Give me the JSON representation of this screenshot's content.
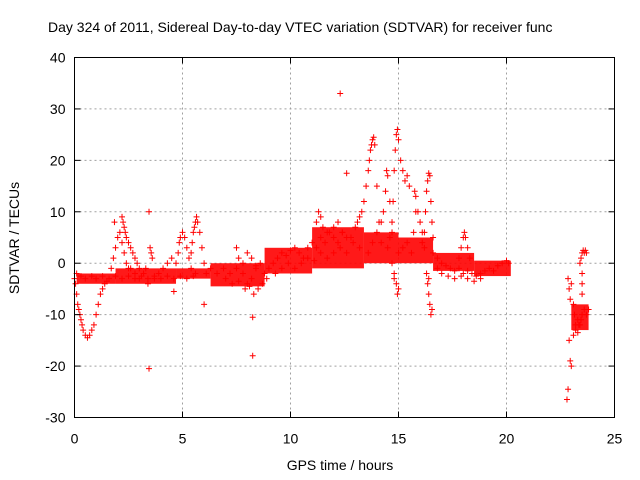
{
  "chart_data": {
    "type": "scatter",
    "title": "Day 324 of 2011, Sidereal Day-to-day VTEC variation (SDTVAR) for receiver func",
    "xlabel": "GPS time / hours",
    "ylabel": "SDTVAR / TECUs",
    "xlim": [
      0,
      25
    ],
    "ylim": [
      -30,
      40
    ],
    "xticks": [
      0,
      5,
      10,
      15,
      20,
      25
    ],
    "xtick_labels": [
      "0",
      "5",
      "10",
      "15",
      "20",
      "25"
    ],
    "yticks": [
      -30,
      -20,
      -10,
      0,
      10,
      20,
      30,
      40
    ],
    "ytick_labels": [
      "-30",
      "-20",
      "-10",
      "0",
      "10",
      "20",
      "30",
      "40"
    ],
    "grid": true,
    "marker": "+",
    "series": [
      {
        "name": "SDTVAR",
        "color": "#ff0000",
        "points": [
          [
            0.0,
            -3
          ],
          [
            0.05,
            -4
          ],
          [
            0.1,
            -6
          ],
          [
            0.15,
            -8
          ],
          [
            0.2,
            -9
          ],
          [
            0.25,
            -10
          ],
          [
            0.3,
            -11
          ],
          [
            0.35,
            -12
          ],
          [
            0.4,
            -13
          ],
          [
            0.5,
            -14
          ],
          [
            0.6,
            -14.5
          ],
          [
            0.7,
            -14
          ],
          [
            0.8,
            -13
          ],
          [
            0.9,
            -12
          ],
          [
            1.0,
            -10
          ],
          [
            1.1,
            -8
          ],
          [
            1.2,
            -6
          ],
          [
            1.3,
            -5
          ],
          [
            1.4,
            -4
          ],
          [
            1.5,
            -3.5
          ],
          [
            0.1,
            -2
          ],
          [
            0.3,
            -2.5
          ],
          [
            0.5,
            -3
          ],
          [
            0.8,
            -2.5
          ],
          [
            1.0,
            -3
          ],
          [
            1.3,
            -2.5
          ],
          [
            1.6,
            -3
          ],
          [
            1.9,
            -2.5
          ],
          [
            2.2,
            -3
          ],
          [
            2.5,
            -2.5
          ],
          [
            2.8,
            -3
          ],
          [
            3.1,
            -2.5
          ],
          [
            3.4,
            -3
          ],
          [
            3.7,
            -2.5
          ],
          [
            4.0,
            -3
          ],
          [
            4.3,
            -2.5
          ],
          [
            4.6,
            -3
          ],
          [
            4.9,
            -2.5
          ],
          [
            5.2,
            -3
          ],
          [
            5.5,
            -2.5
          ],
          [
            1.7,
            -1
          ],
          [
            1.8,
            1
          ],
          [
            1.9,
            3
          ],
          [
            2.0,
            5
          ],
          [
            2.1,
            6
          ],
          [
            1.85,
            8
          ],
          [
            2.2,
            4
          ],
          [
            2.3,
            2
          ],
          [
            2.4,
            0
          ],
          [
            2.5,
            -1
          ],
          [
            2.2,
            9
          ],
          [
            2.25,
            8
          ],
          [
            2.3,
            7
          ],
          [
            2.35,
            6
          ],
          [
            2.4,
            5
          ],
          [
            2.5,
            4
          ],
          [
            2.6,
            3
          ],
          [
            2.7,
            2
          ],
          [
            2.8,
            1
          ],
          [
            2.9,
            0
          ],
          [
            3.0,
            -1
          ],
          [
            3.2,
            -2
          ],
          [
            2.6,
            -1
          ],
          [
            2.8,
            -2
          ],
          [
            3.0,
            -3
          ],
          [
            3.3,
            -1
          ],
          [
            3.5,
            3
          ],
          [
            3.55,
            2
          ],
          [
            3.6,
            1
          ],
          [
            3.4,
            -4
          ],
          [
            3.7,
            -3
          ],
          [
            3.9,
            -2
          ],
          [
            4.1,
            -1
          ],
          [
            4.3,
            0
          ],
          [
            4.5,
            1
          ],
          [
            4.6,
            -5.5
          ],
          [
            3.45,
            10
          ],
          [
            3.45,
            -20.5
          ],
          [
            4.7,
            0
          ],
          [
            4.8,
            2
          ],
          [
            4.85,
            4
          ],
          [
            4.9,
            5
          ],
          [
            5.0,
            6
          ],
          [
            5.1,
            5
          ],
          [
            5.2,
            3
          ],
          [
            5.3,
            1
          ],
          [
            5.4,
            -1
          ],
          [
            5.6,
            -2
          ],
          [
            5.4,
            2
          ],
          [
            5.45,
            4
          ],
          [
            5.5,
            6
          ],
          [
            5.55,
            7
          ],
          [
            5.6,
            8
          ],
          [
            5.65,
            9
          ],
          [
            5.7,
            8
          ],
          [
            5.8,
            6
          ],
          [
            5.9,
            3
          ],
          [
            6.0,
            0
          ],
          [
            6.1,
            -2
          ],
          [
            6.0,
            -8
          ],
          [
            6.3,
            -1
          ],
          [
            6.6,
            -2
          ],
          [
            6.9,
            -1
          ],
          [
            7.2,
            -2
          ],
          [
            7.5,
            -1
          ],
          [
            7.8,
            -2
          ],
          [
            8.0,
            -4
          ],
          [
            8.2,
            -3
          ],
          [
            8.4,
            -1
          ],
          [
            8.6,
            0
          ],
          [
            7.0,
            -3
          ],
          [
            7.3,
            -4
          ],
          [
            7.6,
            -3.5
          ],
          [
            7.9,
            -5
          ],
          [
            8.1,
            -4.5
          ],
          [
            8.3,
            -6
          ],
          [
            8.5,
            -5
          ],
          [
            8.7,
            -4
          ],
          [
            8.9,
            -3
          ],
          [
            7.5,
            3
          ],
          [
            7.6,
            1
          ],
          [
            7.8,
            0
          ],
          [
            8.0,
            2
          ],
          [
            8.2,
            1
          ],
          [
            8.4,
            -0.5
          ],
          [
            8.25,
            -10.5
          ],
          [
            8.25,
            -18
          ],
          [
            8.8,
            -2
          ],
          [
            9.0,
            -1
          ],
          [
            9.2,
            0
          ],
          [
            9.4,
            1
          ],
          [
            9.6,
            2
          ],
          [
            9.8,
            1.5
          ],
          [
            10.0,
            2.5
          ],
          [
            10.2,
            3
          ],
          [
            10.4,
            2
          ],
          [
            10.6,
            1
          ],
          [
            10.8,
            3
          ],
          [
            11.0,
            4
          ],
          [
            11.2,
            3
          ],
          [
            11.4,
            5
          ],
          [
            11.6,
            4
          ],
          [
            11.8,
            6
          ],
          [
            12.0,
            5
          ],
          [
            12.2,
            4
          ],
          [
            12.4,
            6
          ],
          [
            12.6,
            5
          ],
          [
            9.3,
            -2
          ],
          [
            9.6,
            -1
          ],
          [
            9.9,
            0
          ],
          [
            10.2,
            -1
          ],
          [
            10.5,
            0
          ],
          [
            10.8,
            1
          ],
          [
            11.1,
            0.5
          ],
          [
            11.4,
            2
          ],
          [
            11.7,
            1
          ],
          [
            12.0,
            2
          ],
          [
            12.3,
            3
          ],
          [
            12.6,
            2
          ],
          [
            12.9,
            4
          ],
          [
            13.2,
            3
          ],
          [
            11.2,
            8
          ],
          [
            11.3,
            10
          ],
          [
            11.4,
            9
          ],
          [
            11.5,
            7
          ],
          [
            11.7,
            6
          ],
          [
            12.0,
            7
          ],
          [
            12.2,
            8
          ],
          [
            12.4,
            6
          ],
          [
            12.3,
            33
          ],
          [
            12.6,
            17.5
          ],
          [
            12.8,
            5
          ],
          [
            13.0,
            7
          ],
          [
            13.1,
            8
          ],
          [
            13.2,
            9
          ],
          [
            13.3,
            10
          ],
          [
            13.4,
            12
          ],
          [
            13.5,
            15
          ],
          [
            13.6,
            18
          ],
          [
            13.65,
            20
          ],
          [
            13.7,
            22
          ],
          [
            13.75,
            23
          ],
          [
            13.8,
            24
          ],
          [
            13.85,
            24.5
          ],
          [
            13.9,
            23
          ],
          [
            14.0,
            15
          ],
          [
            14.1,
            8
          ],
          [
            14.2,
            4
          ],
          [
            13.6,
            2
          ],
          [
            13.8,
            4
          ],
          [
            14.0,
            6
          ],
          [
            14.2,
            8
          ],
          [
            14.3,
            10
          ],
          [
            14.4,
            14
          ],
          [
            14.45,
            18
          ],
          [
            14.5,
            17
          ],
          [
            14.6,
            12
          ],
          [
            14.7,
            6
          ],
          [
            14.5,
            3
          ],
          [
            14.6,
            5
          ],
          [
            14.7,
            8
          ],
          [
            14.75,
            12
          ],
          [
            14.8,
            18
          ],
          [
            14.85,
            22
          ],
          [
            14.9,
            25
          ],
          [
            14.95,
            26
          ],
          [
            15.0,
            24
          ],
          [
            15.1,
            20
          ],
          [
            15.2,
            18
          ],
          [
            15.3,
            16
          ],
          [
            15.4,
            17
          ],
          [
            15.5,
            15
          ],
          [
            14.7,
            0
          ],
          [
            14.8,
            -2
          ],
          [
            14.9,
            -4
          ],
          [
            15.0,
            -5
          ],
          [
            14.95,
            -6
          ],
          [
            14.8,
            -3
          ],
          [
            15.0,
            2
          ],
          [
            15.2,
            3
          ],
          [
            15.4,
            4
          ],
          [
            15.6,
            2
          ],
          [
            15.7,
            6
          ],
          [
            15.8,
            10
          ],
          [
            15.75,
            14
          ],
          [
            15.8,
            13
          ],
          [
            15.9,
            10
          ],
          [
            16.0,
            8
          ],
          [
            16.1,
            6
          ],
          [
            16.2,
            3
          ],
          [
            16.1,
            4
          ],
          [
            16.2,
            6
          ],
          [
            16.25,
            10
          ],
          [
            16.3,
            14
          ],
          [
            16.35,
            16
          ],
          [
            16.4,
            17.5
          ],
          [
            16.45,
            17
          ],
          [
            16.5,
            12
          ],
          [
            16.55,
            8
          ],
          [
            16.6,
            5
          ],
          [
            16.3,
            -2
          ],
          [
            16.35,
            -4
          ],
          [
            16.4,
            -6
          ],
          [
            16.45,
            -8
          ],
          [
            16.5,
            -10
          ],
          [
            16.55,
            -9
          ],
          [
            16.4,
            -3
          ],
          [
            16.6,
            2
          ],
          [
            16.8,
            1
          ],
          [
            17.0,
            0
          ],
          [
            17.2,
            -0.5
          ],
          [
            17.4,
            -1
          ],
          [
            17.6,
            -1.5
          ],
          [
            17.8,
            -1
          ],
          [
            18.0,
            -2
          ],
          [
            18.2,
            -1.5
          ],
          [
            18.4,
            -2
          ],
          [
            18.6,
            -2.5
          ],
          [
            18.8,
            -2
          ],
          [
            19.0,
            -1.5
          ],
          [
            19.2,
            -1
          ],
          [
            19.4,
            -1.5
          ],
          [
            19.6,
            -0.5
          ],
          [
            19.8,
            0
          ],
          [
            20.0,
            0.5
          ],
          [
            20.1,
            0
          ],
          [
            17.8,
            1
          ],
          [
            17.9,
            3
          ],
          [
            18.0,
            5
          ],
          [
            18.05,
            6
          ],
          [
            18.1,
            5
          ],
          [
            18.2,
            3
          ],
          [
            18.3,
            1
          ],
          [
            16.8,
            -1
          ],
          [
            17.0,
            -2
          ],
          [
            17.3,
            -2.5
          ],
          [
            17.6,
            -3
          ],
          [
            17.9,
            -2.5
          ],
          [
            18.2,
            -3
          ],
          [
            18.5,
            -3.5
          ],
          [
            18.8,
            -3
          ],
          [
            22.85,
            -3
          ],
          [
            22.9,
            -5
          ],
          [
            22.95,
            -7
          ],
          [
            22.9,
            -15
          ],
          [
            22.95,
            -19
          ],
          [
            23.0,
            -20
          ],
          [
            22.85,
            -24.5
          ],
          [
            22.8,
            -26.5
          ],
          [
            23.0,
            -4
          ],
          [
            23.1,
            -8
          ],
          [
            23.15,
            -10
          ],
          [
            23.2,
            -12
          ],
          [
            23.3,
            -11
          ],
          [
            23.4,
            -12
          ],
          [
            23.5,
            -10
          ],
          [
            23.6,
            -9
          ],
          [
            23.7,
            -10
          ],
          [
            23.8,
            -9
          ],
          [
            23.2,
            -13
          ],
          [
            23.3,
            -13.5
          ],
          [
            23.1,
            -14
          ],
          [
            23.35,
            -12
          ],
          [
            23.45,
            -11
          ],
          [
            23.4,
            0
          ],
          [
            23.45,
            1
          ],
          [
            23.5,
            2
          ],
          [
            23.55,
            2.5
          ],
          [
            23.6,
            2
          ],
          [
            23.65,
            2.5
          ],
          [
            23.7,
            2
          ],
          [
            23.5,
            -2
          ],
          [
            23.5,
            -4
          ],
          [
            23.5,
            -6
          ]
        ]
      }
    ],
    "bands": [
      [
        0.1,
        1.9,
        -2,
        -4
      ],
      [
        1.9,
        4.7,
        -1,
        -4
      ],
      [
        4.7,
        6.3,
        -1,
        -3
      ],
      [
        6.3,
        8.8,
        0,
        -4.5
      ],
      [
        8.8,
        11.0,
        3,
        -2
      ],
      [
        11.0,
        13.4,
        7,
        -1
      ],
      [
        13.4,
        15.0,
        6,
        0
      ],
      [
        15.0,
        16.6,
        5,
        0
      ],
      [
        16.6,
        18.5,
        2,
        -1.5
      ],
      [
        18.5,
        20.2,
        0.5,
        -2.5
      ],
      [
        23.0,
        23.8,
        -8,
        -13
      ]
    ]
  }
}
